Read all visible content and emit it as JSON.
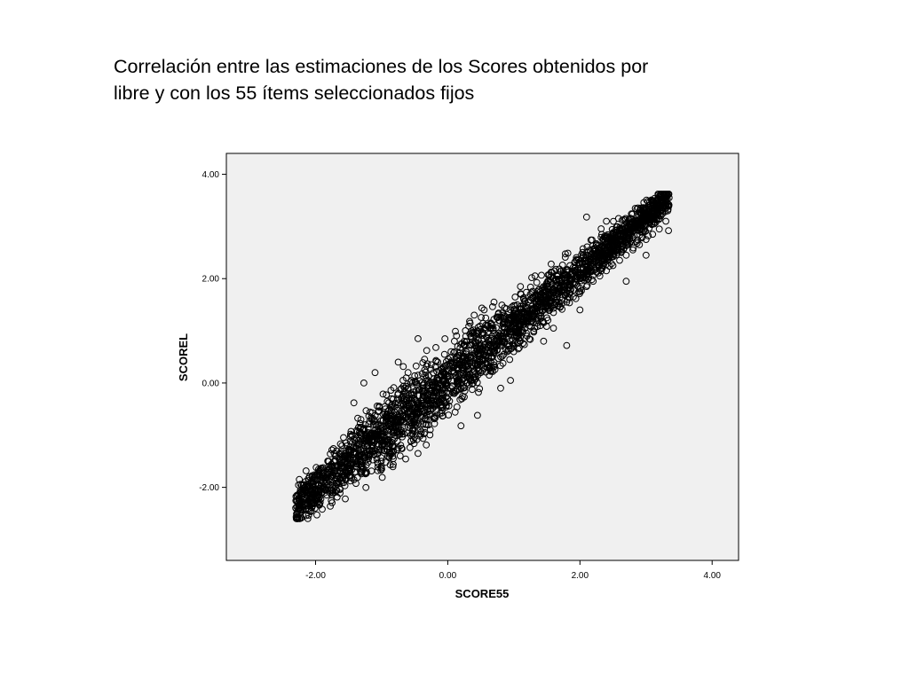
{
  "title": {
    "line1": "Correlación entre las estimaciones de los Scores obtenidos por",
    "line2": "libre y con los 55 ítems seleccionados fijos"
  },
  "chart_data": {
    "type": "scatter",
    "title": "",
    "xlabel": "SCORE55",
    "ylabel": "SCOREL",
    "xlim": [
      -3.35,
      4.4
    ],
    "ylim": [
      -3.4,
      4.4
    ],
    "xticks": [
      -2,
      0,
      2,
      4
    ],
    "yticks": [
      -2,
      0,
      2,
      4
    ],
    "xtick_labels": [
      "-2.00",
      "0.00",
      "2.00",
      "4.00"
    ],
    "ytick_labels": [
      "-2.00",
      "0.00",
      "2.00",
      "4.00"
    ],
    "grid": false,
    "legend": "none",
    "marker": "open-circle",
    "colors": {
      "plot_background": "#f0f0f0",
      "frame": "#000000",
      "points": "#000000"
    },
    "band": {
      "description_free": true,
      "x_range": [
        -2.3,
        3.35
      ],
      "y_range": [
        -2.6,
        3.62
      ],
      "relation": {
        "slope": 1.05,
        "intercept": 0.05
      }
    },
    "points": [
      [
        -2.3,
        -2.4
      ],
      [
        -2.28,
        -2.58
      ],
      [
        -2.25,
        -2.2
      ],
      [
        -2.24,
        -2.5
      ],
      [
        -2.2,
        -2.32
      ],
      [
        -2.15,
        -2.1
      ],
      [
        -2.1,
        -2.45
      ],
      [
        -2.05,
        -1.95
      ],
      [
        -2.0,
        -2.3
      ],
      [
        -1.95,
        -1.7
      ],
      [
        -1.92,
        -2.22
      ],
      [
        -1.85,
        -1.8
      ],
      [
        -1.8,
        -1.5
      ],
      [
        -1.75,
        -2.05
      ],
      [
        -1.7,
        -1.4
      ],
      [
        -1.65,
        -1.9
      ],
      [
        -1.6,
        -1.2
      ],
      [
        -1.55,
        -1.85
      ],
      [
        -1.5,
        -1.3
      ],
      [
        -1.45,
        -1.0
      ],
      [
        -1.4,
        -1.7
      ],
      [
        -1.35,
        -0.85
      ],
      [
        -1.3,
        -1.55
      ],
      [
        -1.25,
        -0.8
      ],
      [
        -1.2,
        -1.45
      ],
      [
        -1.15,
        -0.7
      ],
      [
        -1.1,
        -1.3
      ],
      [
        -1.05,
        -0.55
      ],
      [
        -1.0,
        -1.2
      ],
      [
        -0.95,
        -0.45
      ],
      [
        -0.9,
        -1.1
      ],
      [
        -0.85,
        -0.3
      ],
      [
        -0.8,
        -1.0
      ],
      [
        -0.75,
        -0.2
      ],
      [
        -0.7,
        -0.95
      ],
      [
        -0.65,
        -0.1
      ],
      [
        -0.6,
        -0.85
      ],
      [
        -0.55,
        0.05
      ],
      [
        -0.5,
        -0.75
      ],
      [
        -0.45,
        0.15
      ],
      [
        -0.4,
        -0.65
      ],
      [
        -0.35,
        0.25
      ],
      [
        -0.3,
        -0.55
      ],
      [
        -0.25,
        0.35
      ],
      [
        -0.2,
        -0.45
      ],
      [
        -0.15,
        0.4
      ],
      [
        -0.1,
        -0.35
      ],
      [
        -0.05,
        0.55
      ],
      [
        0.0,
        -0.3
      ],
      [
        0.05,
        0.6
      ],
      [
        0.1,
        -0.2
      ],
      [
        0.15,
        0.7
      ],
      [
        0.2,
        -0.1
      ],
      [
        0.25,
        0.8
      ],
      [
        0.3,
        0.0
      ],
      [
        0.35,
        0.9
      ],
      [
        0.4,
        0.1
      ],
      [
        0.45,
        1.0
      ],
      [
        0.5,
        0.2
      ],
      [
        0.55,
        1.05
      ],
      [
        0.6,
        0.3
      ],
      [
        0.65,
        1.15
      ],
      [
        0.7,
        0.4
      ],
      [
        0.75,
        1.25
      ],
      [
        0.8,
        0.5
      ],
      [
        0.85,
        1.3
      ],
      [
        0.9,
        0.6
      ],
      [
        0.95,
        1.4
      ],
      [
        1.0,
        0.7
      ],
      [
        1.05,
        1.5
      ],
      [
        1.1,
        0.8
      ],
      [
        1.15,
        1.6
      ],
      [
        1.2,
        0.9
      ],
      [
        1.25,
        1.7
      ],
      [
        1.3,
        1.0
      ],
      [
        1.35,
        1.75
      ],
      [
        1.4,
        1.1
      ],
      [
        1.45,
        1.85
      ],
      [
        1.5,
        1.25
      ],
      [
        1.55,
        1.95
      ],
      [
        1.6,
        1.35
      ],
      [
        1.65,
        2.05
      ],
      [
        1.7,
        1.45
      ],
      [
        1.75,
        2.15
      ],
      [
        1.8,
        1.55
      ],
      [
        1.85,
        2.25
      ],
      [
        1.9,
        1.65
      ],
      [
        1.95,
        2.35
      ],
      [
        2.0,
        1.75
      ],
      [
        2.05,
        2.45
      ],
      [
        2.1,
        1.85
      ],
      [
        2.15,
        2.55
      ],
      [
        2.2,
        1.95
      ],
      [
        2.25,
        2.65
      ],
      [
        2.3,
        2.05
      ],
      [
        2.35,
        2.72
      ],
      [
        2.4,
        2.15
      ],
      [
        2.45,
        2.8
      ],
      [
        2.5,
        2.25
      ],
      [
        2.55,
        2.88
      ],
      [
        2.6,
        2.35
      ],
      [
        2.65,
        2.95
      ],
      [
        2.7,
        2.45
      ],
      [
        2.75,
        3.05
      ],
      [
        2.8,
        2.55
      ],
      [
        2.85,
        3.12
      ],
      [
        2.9,
        2.65
      ],
      [
        2.95,
        3.2
      ],
      [
        3.0,
        2.75
      ],
      [
        3.05,
        3.28
      ],
      [
        3.1,
        2.85
      ],
      [
        3.15,
        3.35
      ],
      [
        3.2,
        2.95
      ],
      [
        3.25,
        3.45
      ],
      [
        3.3,
        3.1
      ],
      [
        3.35,
        3.55
      ],
      [
        3.34,
        3.62
      ],
      [
        3.33,
        3.3
      ],
      [
        3.34,
        2.92
      ],
      [
        3.3,
        3.4
      ],
      [
        -1.27,
        0.0
      ],
      [
        -0.75,
        0.4
      ],
      [
        -0.6,
        0.2
      ],
      [
        -0.45,
        0.85
      ],
      [
        -0.18,
        0.68
      ],
      [
        0.1,
        0.8
      ],
      [
        0.55,
        1.4
      ],
      [
        0.7,
        1.55
      ],
      [
        1.1,
        1.85
      ],
      [
        1.27,
        2.02
      ],
      [
        2.1,
        3.18
      ],
      [
        2.4,
        3.1
      ],
      [
        -0.2,
        -0.78
      ],
      [
        0.2,
        -0.82
      ],
      [
        0.45,
        -0.62
      ],
      [
        0.8,
        -0.1
      ],
      [
        0.95,
        0.05
      ],
      [
        1.45,
        0.8
      ],
      [
        1.8,
        0.72
      ],
      [
        2.7,
        1.95
      ],
      [
        3.0,
        2.45
      ],
      [
        -1.0,
        -1.65
      ],
      [
        -0.45,
        -1.35
      ],
      [
        -1.55,
        -2.22
      ],
      [
        -1.1,
        0.2
      ],
      [
        1.6,
        1.05
      ],
      [
        -1.42,
        -0.38
      ],
      [
        2.0,
        1.4
      ],
      [
        0.4,
        1.3
      ],
      [
        -0.7,
        -1.25
      ]
    ],
    "point_count_note": "Dense overlapping sample; the band appears solid black.",
    "n_fill": 2600
  }
}
